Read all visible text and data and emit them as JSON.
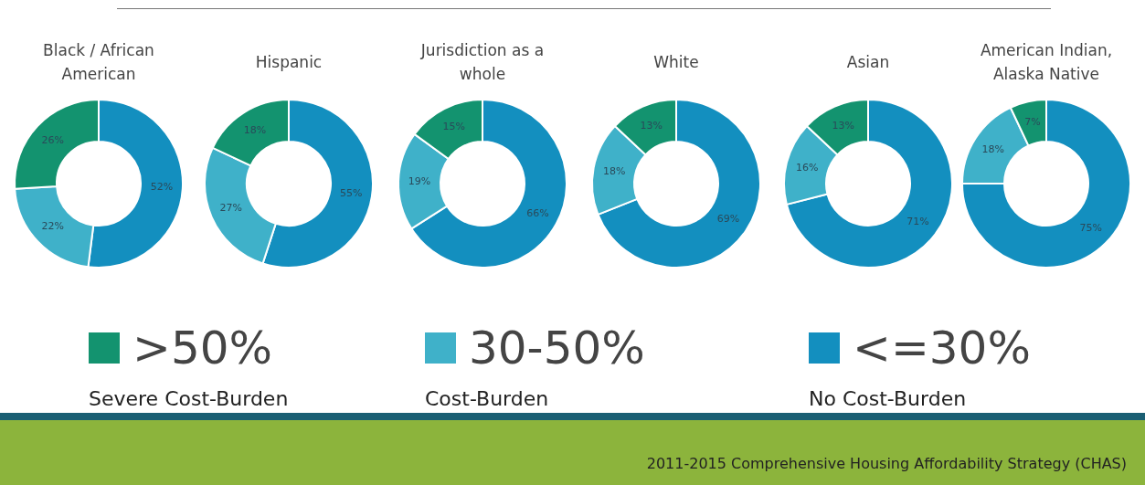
{
  "chart_data": [
    {
      "type": "donut",
      "title": "Black / African American",
      "categories": [
        ">50%",
        "30-50%",
        "<=30%"
      ],
      "values": [
        26,
        22,
        52
      ],
      "value_labels": [
        "26%",
        "22%",
        "52%"
      ],
      "colors": [
        "#13936f",
        "#3fb1c9",
        "#138fbf"
      ],
      "legend": "bottom"
    },
    {
      "type": "donut",
      "title": "Hispanic",
      "categories": [
        null,
        null,
        null
      ],
      "values": [
        18,
        27,
        55
      ],
      "value_labels": [
        "18%",
        "27%",
        "55%"
      ],
      "colors": [
        "#13936f",
        "#3fb1c9",
        "#138fbf"
      ]
    },
    {
      "type": "donut",
      "title": "Jurisdiction as a whole",
      "categories": [
        null,
        null,
        null
      ],
      "values": [
        15,
        19,
        66
      ],
      "value_labels": [
        "15%",
        "19%",
        "66%"
      ],
      "colors": [
        "#13936f",
        "#3fb1c9",
        "#138fbf"
      ]
    },
    {
      "type": "donut",
      "title": "White",
      "categories": [
        null,
        null,
        null
      ],
      "values": [
        13,
        18,
        69
      ],
      "value_labels": [
        "13%",
        "18%",
        "69%"
      ],
      "colors": [
        "#13936f",
        "#3fb1c9",
        "#138fbf"
      ]
    },
    {
      "type": "donut",
      "title": "Asian",
      "categories": [
        null,
        null,
        null
      ],
      "values": [
        13,
        16,
        71
      ],
      "value_labels": [
        "13%",
        "16%",
        "71%"
      ],
      "colors": [
        "#13936f",
        "#3fb1c9",
        "#138fbf"
      ]
    },
    {
      "type": "donut",
      "title": "American Indian, Alaska Native",
      "categories": [
        null,
        null,
        null
      ],
      "values": [
        7,
        18,
        75
      ],
      "value_labels": [
        "7%",
        "18%",
        "75%"
      ],
      "colors": [
        "#13936f",
        "#3fb1c9",
        "#138fbf"
      ]
    },
    {
      "type": "other",
      "annotations": [
        "Severe Cost-Burden",
        "Cost-Burden",
        "No Cost-Burden",
        "2011-2015 Comprehensive Housing Affordability Strategy (CHAS)"
      ]
    }
  ]
}
